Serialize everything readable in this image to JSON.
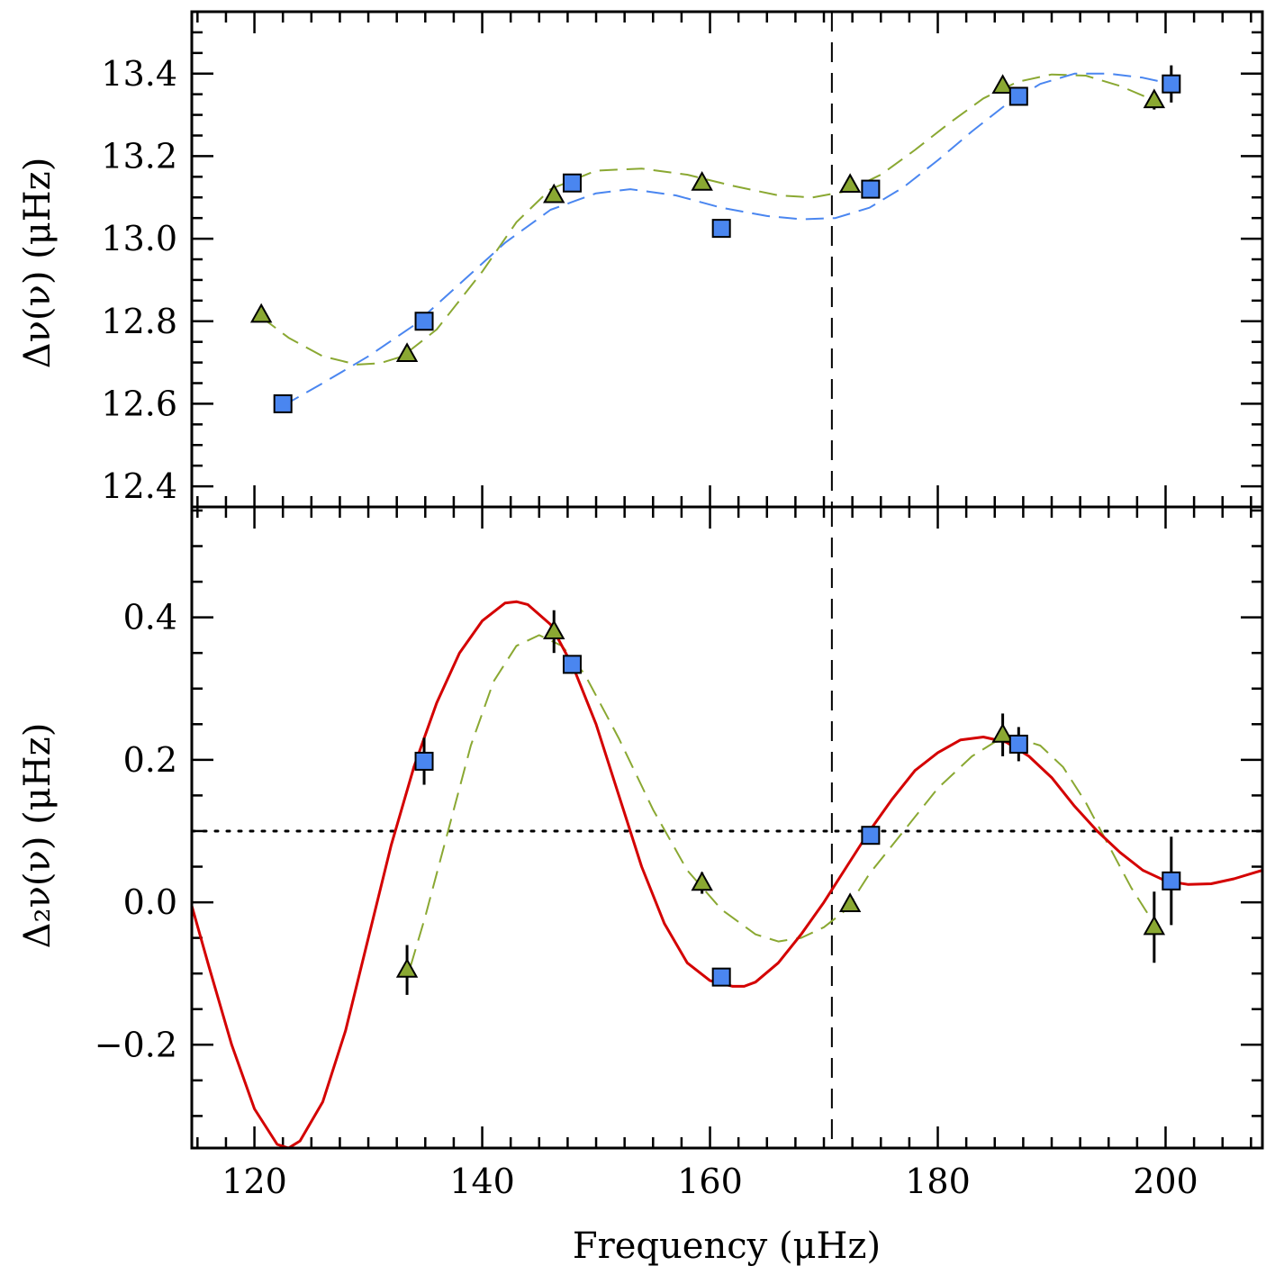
{
  "chart_data": [
    {
      "type": "scatter",
      "panel": "top",
      "ylabel": "Δν(ν) (μHz)",
      "xlim": [
        114.5,
        208.5
      ],
      "ylim": [
        12.35,
        13.55
      ],
      "yticks": [
        12.4,
        12.6,
        12.8,
        13.0,
        13.2,
        13.4
      ],
      "ytick_labels": [
        "12.4",
        "12.6",
        "12.8",
        "13.0",
        "13.2",
        "13.4"
      ],
      "xticks": [
        120,
        140,
        160,
        180,
        200
      ],
      "vline_x": 170.7,
      "series": [
        {
          "marker": "triangle",
          "color": "#8aa832",
          "points": [
            {
              "x": 120.6,
              "y": 12.815,
              "err": 0.005
            },
            {
              "x": 133.4,
              "y": 12.72,
              "err": 0.005
            },
            {
              "x": 146.3,
              "y": 13.105,
              "err": 0.01
            },
            {
              "x": 159.3,
              "y": 13.135,
              "err": 0.008
            },
            {
              "x": 172.3,
              "y": 13.13,
              "err": 0.01
            },
            {
              "x": 185.7,
              "y": 13.37,
              "err": 0.012
            },
            {
              "x": 199.0,
              "y": 13.335,
              "err": 0.022
            }
          ],
          "fit_style": "dashed",
          "fit": [
            [
              120.6,
              12.81
            ],
            [
              123,
              12.76
            ],
            [
              126,
              12.715
            ],
            [
              129,
              12.695
            ],
            [
              131,
              12.698
            ],
            [
              133,
              12.715
            ],
            [
              136,
              12.78
            ],
            [
              140,
              12.92
            ],
            [
              143,
              13.04
            ],
            [
              146,
              13.12
            ],
            [
              150,
              13.165
            ],
            [
              154,
              13.17
            ],
            [
              158,
              13.155
            ],
            [
              162,
              13.128
            ],
            [
              166,
              13.105
            ],
            [
              169,
              13.1
            ],
            [
              172,
              13.115
            ],
            [
              175,
              13.155
            ],
            [
              178,
              13.215
            ],
            [
              181,
              13.28
            ],
            [
              184,
              13.34
            ],
            [
              187,
              13.38
            ],
            [
              190,
              13.398
            ],
            [
              193,
              13.395
            ],
            [
              196,
              13.37
            ],
            [
              199,
              13.335
            ]
          ]
        },
        {
          "marker": "square",
          "color": "#4a86f0",
          "points": [
            {
              "x": 122.5,
              "y": 12.6,
              "err": 0.02
            },
            {
              "x": 134.9,
              "y": 12.8,
              "err": 0.01
            },
            {
              "x": 147.9,
              "y": 13.135,
              "err": 0.01
            },
            {
              "x": 161.0,
              "y": 13.025,
              "err": 0.008
            },
            {
              "x": 174.1,
              "y": 13.12,
              "err": 0.012
            },
            {
              "x": 187.1,
              "y": 13.345,
              "err": 0.012
            },
            {
              "x": 200.5,
              "y": 13.375,
              "err": 0.045
            }
          ],
          "fit_style": "dashed",
          "fit": [
            [
              122.5,
              12.595
            ],
            [
              126,
              12.65
            ],
            [
              130,
              12.715
            ],
            [
              134,
              12.79
            ],
            [
              138,
              12.89
            ],
            [
              142,
              12.99
            ],
            [
              146,
              13.07
            ],
            [
              150,
              13.11
            ],
            [
              153,
              13.12
            ],
            [
              157,
              13.105
            ],
            [
              161,
              13.075
            ],
            [
              165,
              13.055
            ],
            [
              168,
              13.047
            ],
            [
              171,
              13.05
            ],
            [
              174,
              13.075
            ],
            [
              177,
              13.125
            ],
            [
              180,
              13.19
            ],
            [
              183,
              13.26
            ],
            [
              186,
              13.325
            ],
            [
              189,
              13.375
            ],
            [
              192,
              13.4
            ],
            [
              195,
              13.4
            ],
            [
              198,
              13.39
            ],
            [
              200.5,
              13.375
            ]
          ]
        }
      ]
    },
    {
      "type": "scatter",
      "panel": "bottom",
      "xlabel": "Frequency (μHz)",
      "ylabel": "Δ₂ν(ν) (μHz)",
      "xlim": [
        114.5,
        208.5
      ],
      "ylim": [
        -0.345,
        0.555
      ],
      "yticks": [
        -0.2,
        0.0,
        0.2,
        0.4
      ],
      "ytick_labels": [
        "−0.2",
        "0.0",
        "0.2",
        "0.4"
      ],
      "xticks": [
        120,
        140,
        160,
        180,
        200
      ],
      "xtick_labels": [
        "120",
        "140",
        "160",
        "180",
        "200"
      ],
      "vline_x": 170.7,
      "hline_y": 0.1,
      "series": [
        {
          "marker": "triangle",
          "color": "#8aa832",
          "points": [
            {
              "x": 133.4,
              "y": -0.095,
              "err": 0.035
            },
            {
              "x": 146.3,
              "y": 0.38,
              "err": 0.03
            },
            {
              "x": 159.3,
              "y": 0.027,
              "err": 0.015
            },
            {
              "x": 172.3,
              "y": -0.003,
              "err": 0.008
            },
            {
              "x": 185.7,
              "y": 0.235,
              "err": 0.03
            },
            {
              "x": 199.0,
              "y": -0.035,
              "err": 0.05
            }
          ],
          "fit_style": "dashed",
          "fit": [
            [
              133.7,
              -0.09
            ],
            [
              135,
              -0.02
            ],
            [
              137,
              0.1
            ],
            [
              139,
              0.22
            ],
            [
              141,
              0.31
            ],
            [
              143,
              0.36
            ],
            [
              145,
              0.375
            ],
            [
              147,
              0.36
            ],
            [
              149,
              0.32
            ],
            [
              152,
              0.23
            ],
            [
              155,
              0.13
            ],
            [
              158,
              0.045
            ],
            [
              161,
              -0.01
            ],
            [
              164,
              -0.045
            ],
            [
              166,
              -0.055
            ],
            [
              168,
              -0.05
            ],
            [
              170,
              -0.035
            ],
            [
              172,
              -0.01
            ],
            [
              174,
              0.04
            ],
            [
              177,
              0.1
            ],
            [
              180,
              0.16
            ],
            [
              183,
              0.205
            ],
            [
              185,
              0.225
            ],
            [
              187,
              0.23
            ],
            [
              189,
              0.22
            ],
            [
              191,
              0.19
            ],
            [
              193,
              0.14
            ],
            [
              195,
              0.08
            ],
            [
              197,
              0.02
            ],
            [
              199,
              -0.03
            ]
          ]
        },
        {
          "marker": "square",
          "color": "#4a86f0",
          "points": [
            {
              "x": 134.9,
              "y": 0.198,
              "err": 0.033
            },
            {
              "x": 147.9,
              "y": 0.334,
              "err": 0.013
            },
            {
              "x": 161.0,
              "y": -0.105,
              "err": 0.005
            },
            {
              "x": 174.1,
              "y": 0.094,
              "err": 0.007
            },
            {
              "x": 187.1,
              "y": 0.222,
              "err": 0.024
            },
            {
              "x": 200.5,
              "y": 0.03,
              "err": 0.062
            }
          ]
        },
        {
          "marker": "none",
          "color": "#d40000",
          "fit_style": "solid",
          "fit": [
            [
              114.5,
              -0.005
            ],
            [
              116,
              -0.09
            ],
            [
              118,
              -0.2
            ],
            [
              120,
              -0.29
            ],
            [
              122,
              -0.34
            ],
            [
              123,
              -0.345
            ],
            [
              124,
              -0.335
            ],
            [
              126,
              -0.28
            ],
            [
              128,
              -0.18
            ],
            [
              130,
              -0.05
            ],
            [
              132,
              0.08
            ],
            [
              134,
              0.19
            ],
            [
              136,
              0.28
            ],
            [
              138,
              0.35
            ],
            [
              140,
              0.395
            ],
            [
              142,
              0.42
            ],
            [
              143,
              0.422
            ],
            [
              144,
              0.418
            ],
            [
              146,
              0.39
            ],
            [
              148,
              0.33
            ],
            [
              150,
              0.25
            ],
            [
              152,
              0.15
            ],
            [
              154,
              0.05
            ],
            [
              156,
              -0.03
            ],
            [
              158,
              -0.085
            ],
            [
              160,
              -0.11
            ],
            [
              162,
              -0.118
            ],
            [
              163,
              -0.118
            ],
            [
              164,
              -0.112
            ],
            [
              166,
              -0.085
            ],
            [
              168,
              -0.045
            ],
            [
              170,
              0.0
            ],
            [
              172,
              0.05
            ],
            [
              174,
              0.1
            ],
            [
              176,
              0.145
            ],
            [
              178,
              0.185
            ],
            [
              180,
              0.21
            ],
            [
              182,
              0.228
            ],
            [
              184,
              0.232
            ],
            [
              186,
              0.225
            ],
            [
              188,
              0.205
            ],
            [
              190,
              0.175
            ],
            [
              192,
              0.135
            ],
            [
              194,
              0.1
            ],
            [
              196,
              0.07
            ],
            [
              198,
              0.045
            ],
            [
              200,
              0.03
            ],
            [
              202,
              0.025
            ],
            [
              204,
              0.026
            ],
            [
              206,
              0.033
            ],
            [
              208.5,
              0.045
            ]
          ]
        }
      ]
    }
  ]
}
